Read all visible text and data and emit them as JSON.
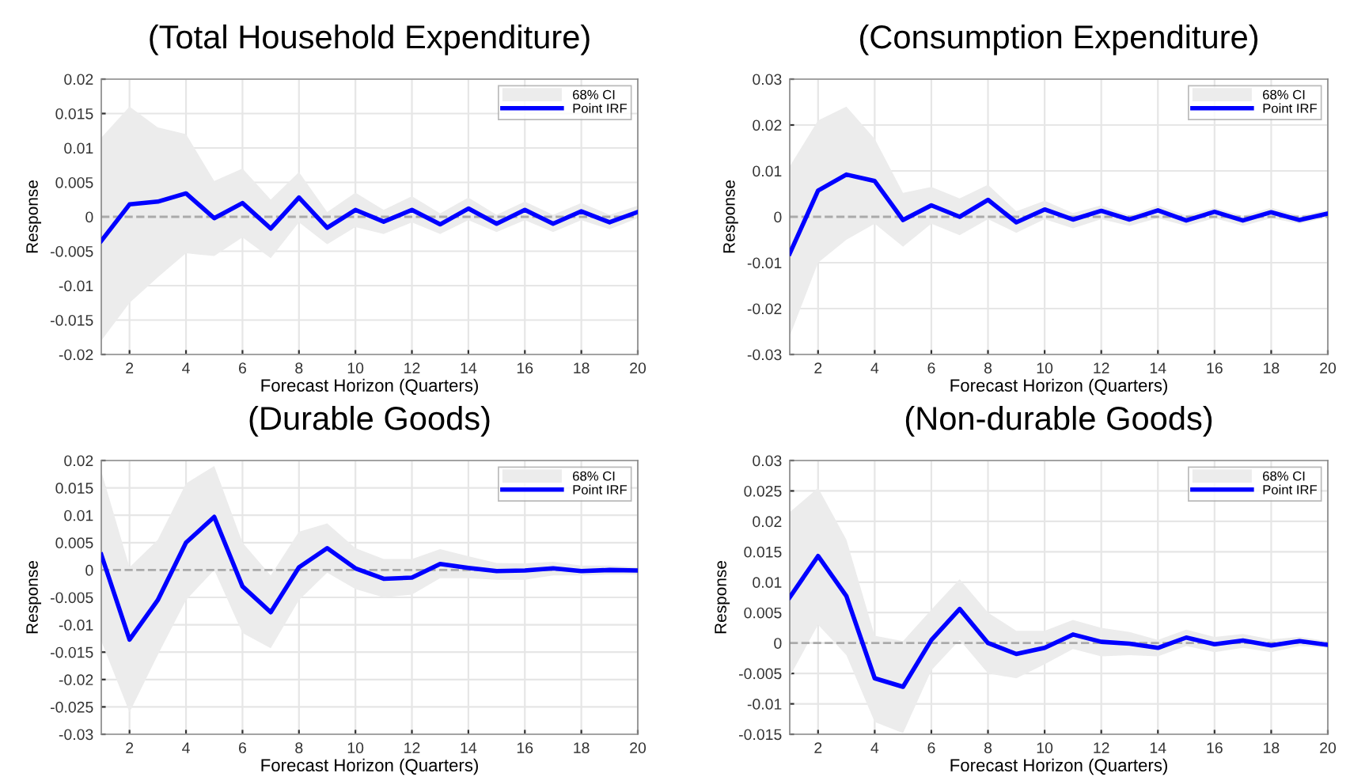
{
  "chart_data": [
    {
      "type": "line",
      "title": "(Total Household Expenditure)",
      "xlabel": "Forecast Horizon (Quarters)",
      "ylabel": "Response",
      "annotations": [
        "68% CI"
      ],
      "x": [
        1,
        2,
        3,
        4,
        5,
        6,
        7,
        8,
        9,
        10,
        11,
        12,
        13,
        14,
        15,
        16,
        17,
        18,
        19,
        20
      ],
      "series": [
        {
          "name": "Point IRF",
          "color": "#0000ff",
          "values": [
            -0.0035,
            0.0018,
            0.0022,
            0.0034,
            -0.0002,
            0.002,
            -0.0017,
            0.0028,
            -0.0016,
            0.001,
            -0.0007,
            0.001,
            -0.0011,
            0.0012,
            -0.001,
            0.001,
            -0.001,
            0.0008,
            -0.0008,
            0.0007
          ],
          "lower": [
            -0.018,
            -0.0125,
            -0.0088,
            -0.0053,
            -0.0057,
            -0.003,
            -0.006,
            -0.0008,
            -0.004,
            -0.0015,
            -0.0025,
            -0.0008,
            -0.0025,
            -0.0005,
            -0.0022,
            -0.0005,
            -0.0022,
            -0.0005,
            -0.0018,
            -0.0002
          ],
          "upper": [
            0.0115,
            0.016,
            0.013,
            0.012,
            0.0052,
            0.007,
            0.0025,
            0.0065,
            0.0007,
            0.0035,
            0.001,
            0.003,
            0.0005,
            0.0028,
            0.0003,
            0.0022,
            0.0003,
            0.002,
            0.0003,
            0.0016
          ]
        }
      ],
      "xlim": [
        1,
        20
      ],
      "xticks": [
        2,
        4,
        6,
        8,
        10,
        12,
        14,
        16,
        18,
        20
      ],
      "ylim": [
        -0.02,
        0.02
      ],
      "yticks": [
        -0.02,
        -0.015,
        -0.01,
        -0.005,
        0,
        0.005,
        0.01,
        0.015,
        0.02
      ],
      "ref_lines": [
        {
          "axis": "y",
          "value": 0,
          "color": "#aaaaaa",
          "line_style": "dashed"
        }
      ],
      "grid": true,
      "legend": "top right"
    },
    {
      "type": "line",
      "title": "(Consumption Expenditure)",
      "xlabel": "Forecast Horizon (Quarters)",
      "ylabel": "Response",
      "annotations": [
        "68% CI"
      ],
      "x": [
        1,
        2,
        3,
        4,
        5,
        6,
        7,
        8,
        9,
        10,
        11,
        12,
        13,
        14,
        15,
        16,
        17,
        18,
        19,
        20
      ],
      "series": [
        {
          "name": "Point IRF",
          "color": "#0000ff",
          "values": [
            -0.008,
            0.0057,
            0.0092,
            0.0078,
            -0.0007,
            0.0025,
            0.0,
            0.0037,
            -0.0012,
            0.0016,
            -0.0006,
            0.0013,
            -0.0006,
            0.0014,
            -0.0008,
            0.0011,
            -0.0008,
            0.001,
            -0.0007,
            0.0007
          ],
          "lower": [
            -0.026,
            -0.01,
            -0.005,
            -0.0015,
            -0.0065,
            -0.0015,
            -0.004,
            -0.0005,
            -0.0035,
            -0.0005,
            -0.0025,
            -0.0005,
            -0.002,
            -0.0003,
            -0.002,
            -0.0003,
            -0.002,
            -0.0003,
            -0.0015,
            -0.0001
          ],
          "upper": [
            0.011,
            0.021,
            0.024,
            0.017,
            0.0052,
            0.0065,
            0.004,
            0.007,
            0.0012,
            0.0035,
            0.0008,
            0.0025,
            0.0003,
            0.0025,
            0.0003,
            0.002,
            0.0002,
            0.002,
            0.0002,
            0.0015
          ]
        }
      ],
      "xlim": [
        1,
        20
      ],
      "xticks": [
        2,
        4,
        6,
        8,
        10,
        12,
        14,
        16,
        18,
        20
      ],
      "ylim": [
        -0.03,
        0.03
      ],
      "yticks": [
        -0.03,
        -0.02,
        -0.01,
        0,
        0.01,
        0.02,
        0.03
      ],
      "ref_lines": [
        {
          "axis": "y",
          "value": 0,
          "color": "#aaaaaa",
          "line_style": "dashed"
        }
      ],
      "grid": true,
      "legend": "top right"
    },
    {
      "type": "line",
      "title": "(Durable Goods)",
      "xlabel": "Forecast Horizon (Quarters)",
      "ylabel": "Response",
      "annotations": [
        "68% CI"
      ],
      "x": [
        1,
        2,
        3,
        4,
        5,
        6,
        7,
        8,
        9,
        10,
        11,
        12,
        13,
        14,
        15,
        16,
        17,
        18,
        19,
        20
      ],
      "series": [
        {
          "name": "Point IRF",
          "color": "#0000ff",
          "values": [
            0.0028,
            -0.0127,
            -0.0055,
            0.005,
            0.0097,
            -0.003,
            -0.0077,
            0.0005,
            0.004,
            0.0003,
            -0.0016,
            -0.0014,
            0.0011,
            0.0004,
            -0.0002,
            -0.0001,
            0.0003,
            -0.0002,
            0.0,
            -0.0001
          ],
          "lower": [
            -0.013,
            -0.026,
            -0.0155,
            -0.0055,
            0.0,
            -0.0115,
            -0.0143,
            -0.0055,
            -0.0005,
            -0.0035,
            -0.005,
            -0.0045,
            -0.0015,
            -0.0015,
            -0.0018,
            -0.0018,
            -0.001,
            -0.001,
            -0.0008,
            -0.0008
          ],
          "upper": [
            0.018,
            0.0005,
            0.0055,
            0.0158,
            0.019,
            0.005,
            -0.001,
            0.007,
            0.0085,
            0.004,
            0.002,
            0.002,
            0.0038,
            0.0025,
            0.0013,
            0.0012,
            0.0015,
            0.0008,
            0.0008,
            0.0005
          ]
        }
      ],
      "xlim": [
        1,
        20
      ],
      "xticks": [
        2,
        4,
        6,
        8,
        10,
        12,
        14,
        16,
        18,
        20
      ],
      "ylim": [
        -0.03,
        0.02
      ],
      "yticks": [
        -0.03,
        -0.025,
        -0.02,
        -0.015,
        -0.01,
        -0.005,
        0,
        0.005,
        0.01,
        0.015,
        0.02
      ],
      "ref_lines": [
        {
          "axis": "y",
          "value": 0,
          "color": "#aaaaaa",
          "line_style": "dashed"
        }
      ],
      "grid": true,
      "legend": "top right"
    },
    {
      "type": "line",
      "title": "(Non-durable Goods)",
      "xlabel": "Forecast Horizon (Quarters)",
      "ylabel": "Response",
      "annotations": [
        "68% CI"
      ],
      "x": [
        1,
        2,
        3,
        4,
        5,
        6,
        7,
        8,
        9,
        10,
        11,
        12,
        13,
        14,
        15,
        16,
        17,
        18,
        19,
        20
      ],
      "series": [
        {
          "name": "Point IRF",
          "color": "#0000ff",
          "values": [
            0.0075,
            0.0143,
            0.0077,
            -0.0058,
            -0.0072,
            0.0005,
            0.0056,
            0.0,
            -0.0018,
            -0.0008,
            0.0014,
            0.0002,
            -0.0001,
            -0.0008,
            0.0009,
            -0.0002,
            0.0004,
            -0.0004,
            0.0003,
            -0.0003
          ],
          "lower": [
            -0.0055,
            0.003,
            -0.002,
            -0.013,
            -0.0148,
            -0.0045,
            0.0005,
            -0.005,
            -0.0058,
            -0.0035,
            -0.001,
            -0.0022,
            -0.002,
            -0.0022,
            -0.0005,
            -0.0015,
            -0.0008,
            -0.0015,
            -0.0005,
            -0.0008
          ],
          "upper": [
            0.0215,
            0.0255,
            0.017,
            0.0012,
            0.0003,
            0.0055,
            0.0105,
            0.005,
            0.002,
            0.002,
            0.0038,
            0.0025,
            0.0018,
            0.0005,
            0.0022,
            0.001,
            0.0015,
            0.0006,
            0.001,
            0.0003
          ]
        }
      ],
      "xlim": [
        1,
        20
      ],
      "xticks": [
        2,
        4,
        6,
        8,
        10,
        12,
        14,
        16,
        18,
        20
      ],
      "ylim": [
        -0.015,
        0.03
      ],
      "yticks": [
        -0.015,
        -0.01,
        -0.005,
        0,
        0.005,
        0.01,
        0.015,
        0.02,
        0.025,
        0.03
      ],
      "ref_lines": [
        {
          "axis": "y",
          "value": 0,
          "color": "#aaaaaa",
          "line_style": "dashed"
        }
      ],
      "grid": true,
      "legend": "top right"
    }
  ]
}
